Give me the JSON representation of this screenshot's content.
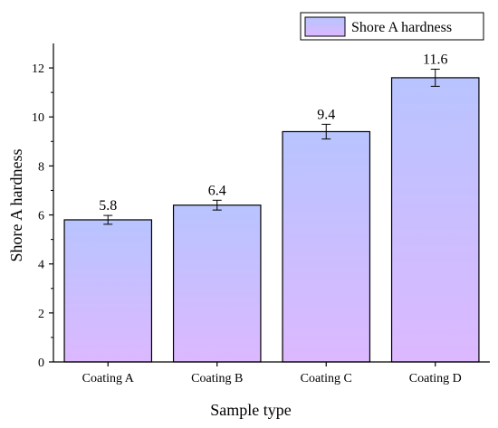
{
  "chart_data": {
    "type": "bar",
    "categories": [
      "Coating A",
      "Coating B",
      "Coating C",
      "Coating D"
    ],
    "series": [
      {
        "name": "Shore A hardness",
        "values": [
          5.8,
          6.4,
          9.4,
          11.6
        ],
        "errors": [
          0.18,
          0.2,
          0.3,
          0.35
        ]
      }
    ],
    "data_labels": [
      "5.8",
      "6.4",
      "9.4",
      "11.6"
    ],
    "xlabel": "Sample type",
    "ylabel": "Shore A hardness",
    "ylim": [
      0,
      13
    ],
    "yticks": [
      0,
      2,
      4,
      6,
      8,
      10,
      12
    ],
    "grid": false,
    "legend_position": "top-right",
    "colors": {
      "bar_top": "#b8c4ff",
      "bar_bottom": "#dcb8ff",
      "bar_stroke": "#000000",
      "axis": "#000000"
    }
  }
}
